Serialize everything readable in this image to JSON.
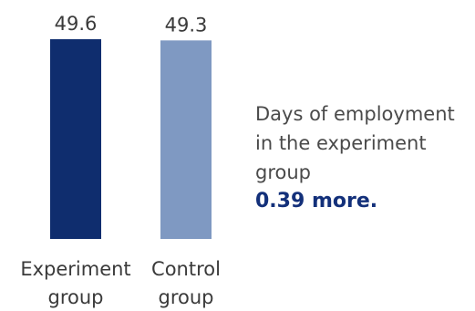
{
  "chart_data": {
    "type": "bar",
    "categories": [
      [
        "Experiment",
        "group"
      ],
      [
        "Control",
        "group"
      ]
    ],
    "values": [
      49.6,
      49.3
    ],
    "value_labels": [
      "49.6",
      "49.3"
    ],
    "colors": [
      "#0f2d6e",
      "#7f99c2"
    ],
    "title": "",
    "xlabel": "",
    "ylabel": ""
  },
  "annotation": {
    "lines": [
      "Days of employment",
      "in the experiment",
      "group"
    ],
    "highlight": "0.39 more."
  }
}
